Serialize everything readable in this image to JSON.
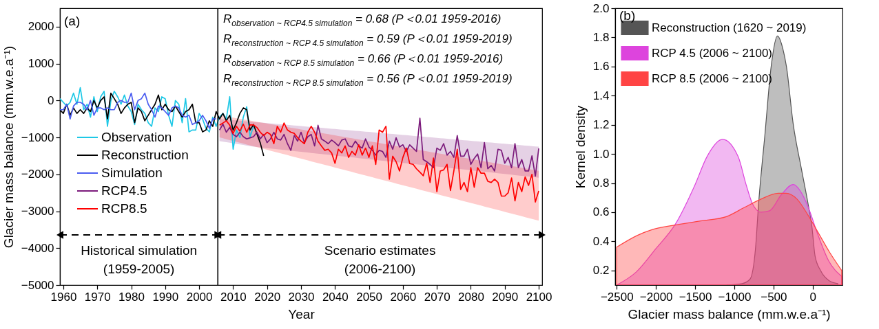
{
  "chart_data": [
    {
      "type": "line",
      "title": "(a)",
      "xlabel": "Year",
      "ylabel": "Glacier mass balance (mm.w.e.a⁻¹)",
      "xlim": [
        1959,
        2101
      ],
      "ylim": [
        -5000,
        2500
      ],
      "xticks": [
        1960,
        1970,
        1980,
        1990,
        2000,
        2010,
        2020,
        2030,
        2040,
        2050,
        2060,
        2070,
        2080,
        2090,
        2100
      ],
      "yticks": [
        -5000,
        -4000,
        -3000,
        -2000,
        -1000,
        0,
        1000,
        2000
      ],
      "legend": "left",
      "ref_lines": [
        {
          "axis": "x",
          "value": 2005.5
        }
      ],
      "annotations": [
        "R$_{observation ~ RCP4.5 simulation}$ = 0.68 (P＜0.01 1959-2016)",
        "R$_{reconstruction ~ RCP 4.5 simulation}$ = 0.59 (P＜0.01 1959-2019)",
        "R$_{observation ~ RCP 8.5 simulation}$ = 0.66 (P＜0.01 1959-2016)",
        "R$_{reconstruction ~ RCP 8.5 simulation}$ = 0.56 (P＜0.01 1959-2019)",
        "Historical simulation\n(1959-2005)",
        "Scenario estimates\n(2006-2100)"
      ],
      "series": [
        {
          "name": "Observation",
          "color": "#1ec8e6",
          "x": [
            1959,
            1960,
            1961,
            1962,
            1963,
            1964,
            1965,
            1966,
            1967,
            1968,
            1969,
            1970,
            1971,
            1972,
            1973,
            1974,
            1975,
            1976,
            1977,
            1978,
            1979,
            1980,
            1981,
            1982,
            1983,
            1984,
            1985,
            1986,
            1987,
            1988,
            1989,
            1990,
            1991,
            1992,
            1993,
            1994,
            1995,
            1996,
            1997,
            1998,
            1999,
            2000,
            2001,
            2002,
            2003,
            2004,
            2005,
            2006,
            2007,
            2008,
            2009,
            2010,
            2011,
            2012,
            2013,
            2014,
            2015,
            2016
          ],
          "values": [
            50,
            -50,
            -150,
            -50,
            200,
            -100,
            350,
            -250,
            -100,
            -450,
            100,
            -300,
            100,
            250,
            -700,
            0,
            250,
            100,
            -100,
            150,
            -150,
            -300,
            -650,
            -100,
            -250,
            -350,
            -600,
            -700,
            -200,
            -300,
            100,
            50,
            -400,
            -700,
            0,
            -100,
            -600,
            50,
            -850,
            -800,
            -800,
            -350,
            -500,
            -750,
            -850,
            -450,
            -700,
            -450,
            -350,
            -500,
            100,
            -1320,
            -800,
            -1000,
            -450,
            -170,
            -980,
            -700
          ]
        },
        {
          "name": "Reconstruction",
          "color": "#000000",
          "x": [
            1959,
            1960,
            1961,
            1962,
            1963,
            1964,
            1965,
            1966,
            1967,
            1968,
            1969,
            1970,
            1971,
            1972,
            1973,
            1974,
            1975,
            1976,
            1977,
            1978,
            1979,
            1980,
            1981,
            1982,
            1983,
            1984,
            1985,
            1986,
            1987,
            1988,
            1989,
            1990,
            1991,
            1992,
            1993,
            1994,
            1995,
            1996,
            1997,
            1998,
            1999,
            2000,
            2001,
            2002,
            2003,
            2004,
            2005,
            2006,
            2007,
            2008,
            2009,
            2010,
            2011,
            2012,
            2013,
            2014,
            2015,
            2016,
            2017,
            2018,
            2019
          ],
          "values": [
            -250,
            -350,
            -100,
            -400,
            -200,
            -350,
            -250,
            -350,
            -200,
            -300,
            0,
            -200,
            0,
            100,
            -500,
            200,
            50,
            -100,
            -350,
            -200,
            -100,
            -50,
            -600,
            -200,
            -300,
            -550,
            -400,
            -250,
            -100,
            150,
            -250,
            -100,
            -250,
            -300,
            -150,
            -300,
            -450,
            -300,
            -250,
            -100,
            -600,
            -600,
            -850,
            -800,
            -550,
            -700,
            -300,
            -500,
            -350,
            -550,
            -400,
            -800,
            -600,
            -350,
            -200,
            -250,
            -800,
            -650,
            -900,
            -1150,
            -1500
          ]
        },
        {
          "name": "Simulation",
          "color": "#4a5cf0",
          "x": [
            1959,
            1960,
            1961,
            1962,
            1963,
            1964,
            1965,
            1966,
            1967,
            1968,
            1969,
            1970,
            1971,
            1972,
            1973,
            1974,
            1975,
            1976,
            1977,
            1978,
            1979,
            1980,
            1981,
            1982,
            1983,
            1984,
            1985,
            1986,
            1987,
            1988,
            1989,
            1990,
            1991,
            1992,
            1993,
            1994,
            1995,
            1996,
            1997,
            1998,
            1999,
            2000,
            2001,
            2002,
            2003,
            2004,
            2005
          ],
          "values": [
            -250,
            -250,
            -100,
            -500,
            -150,
            -50,
            -50,
            -100,
            -250,
            0,
            -400,
            -200,
            -200,
            -250,
            -200,
            -250,
            -250,
            -50,
            0,
            -50,
            -50,
            200,
            -250,
            0,
            50,
            200,
            -100,
            -250,
            -450,
            -150,
            -200,
            -300,
            -400,
            -200,
            -150,
            -200,
            -400,
            -450,
            -400,
            -650,
            -600,
            -550,
            -400,
            -550,
            -750,
            -500,
            -500
          ]
        },
        {
          "name": "RCP4.5",
          "color": "#7b1a7b",
          "x": [
            2006,
            2007,
            2008,
            2009,
            2010,
            2011,
            2012,
            2013,
            2014,
            2015,
            2016,
            2017,
            2018,
            2019,
            2020,
            2021,
            2022,
            2023,
            2024,
            2025,
            2026,
            2027,
            2028,
            2029,
            2030,
            2031,
            2032,
            2033,
            2034,
            2035,
            2036,
            2037,
            2038,
            2039,
            2040,
            2041,
            2042,
            2043,
            2044,
            2045,
            2046,
            2047,
            2048,
            2049,
            2050,
            2051,
            2052,
            2053,
            2054,
            2055,
            2056,
            2057,
            2058,
            2059,
            2060,
            2061,
            2062,
            2063,
            2064,
            2065,
            2066,
            2067,
            2068,
            2069,
            2070,
            2071,
            2072,
            2073,
            2074,
            2075,
            2076,
            2077,
            2078,
            2079,
            2080,
            2081,
            2082,
            2083,
            2084,
            2085,
            2086,
            2087,
            2088,
            2089,
            2090,
            2091,
            2092,
            2093,
            2094,
            2095,
            2096,
            2097,
            2098,
            2099,
            2100
          ],
          "values": [
            -800,
            -640,
            -860,
            -730,
            -920,
            -980,
            -860,
            -980,
            -1040,
            -1010,
            -980,
            -860,
            -1040,
            -920,
            -1140,
            -1040,
            -860,
            -1040,
            -1070,
            -920,
            -1170,
            -1350,
            -950,
            -1100,
            -860,
            -1140,
            -980,
            -920,
            -1230,
            -670,
            -1040,
            -1100,
            -1170,
            -1070,
            -1140,
            -1230,
            -1070,
            -1040,
            -1230,
            -1260,
            -1100,
            -1230,
            -1290,
            -1040,
            -1260,
            -1350,
            -1480,
            -1350,
            -1380,
            -1540,
            -1100,
            -1320,
            -1010,
            -1260,
            -1200,
            -1380,
            -1200,
            -1290,
            -1380,
            -480,
            -1600,
            -1660,
            -1730,
            -1820,
            -1290,
            -1350,
            -1170,
            -1480,
            -1380,
            -1540,
            -950,
            -1510,
            -1510,
            -1320,
            -1730,
            -1570,
            -1450,
            -1820,
            -1140,
            -1850,
            -1760,
            -1910,
            -1320,
            -1350,
            -1700,
            -1540,
            -1820,
            -1170,
            -1820,
            -1600,
            -1910,
            -1910,
            -1500,
            -2050,
            -1300
          ],
          "lower": [
            -1100,
            -1115,
            -1130,
            -1145,
            -1160,
            -1175,
            -1190,
            -1205,
            -1220,
            -1235,
            -1250,
            -1260,
            -1270,
            -1280,
            -1290,
            -1300,
            -1310,
            -1320,
            -1330,
            -1340,
            -1350,
            -1360,
            -1370,
            -1380,
            -1390,
            -1400,
            -1410,
            -1420,
            -1430,
            -1440,
            -1450,
            -1460,
            -1470,
            -1480,
            -1490,
            -1500,
            -1510,
            -1520,
            -1530,
            -1540,
            -1550,
            -1560,
            -1570,
            -1580,
            -1590,
            -1600,
            -1610,
            -1620,
            -1630,
            -1640,
            -1650,
            -1660,
            -1670,
            -1680,
            -1690,
            -1700,
            -1710,
            -1720,
            -1730,
            -1740,
            -1750,
            -1760,
            -1770,
            -1780,
            -1790,
            -1800,
            -1810,
            -1820,
            -1830,
            -1840,
            -1850,
            -1860,
            -1870,
            -1880,
            -1890,
            -1900,
            -1910,
            -1920,
            -1930,
            -1940,
            -1950,
            -1960,
            -1970,
            -1980,
            -1990,
            -2000,
            -2010,
            -2020,
            -2030,
            -2040,
            -2050,
            -2060,
            -2070,
            -2080,
            -2090
          ],
          "upper": [
            -500,
            -508,
            -516,
            -524,
            -532,
            -540,
            -548,
            -556,
            -564,
            -572,
            -580,
            -588,
            -596,
            -604,
            -612,
            -620,
            -628,
            -636,
            -644,
            -652,
            -660,
            -668,
            -676,
            -684,
            -692,
            -700,
            -708,
            -716,
            -724,
            -732,
            -740,
            -748,
            -756,
            -764,
            -772,
            -780,
            -788,
            -796,
            -804,
            -812,
            -820,
            -828,
            -836,
            -844,
            -852,
            -860,
            -868,
            -876,
            -884,
            -892,
            -900,
            -908,
            -916,
            -924,
            -932,
            -940,
            -948,
            -956,
            -964,
            -972,
            -980,
            -988,
            -996,
            -1004,
            -1012,
            -1020,
            -1028,
            -1036,
            -1044,
            -1052,
            -1060,
            -1068,
            -1076,
            -1084,
            -1092,
            -1100,
            -1108,
            -1116,
            -1124,
            -1132,
            -1140,
            -1148,
            -1156,
            -1164,
            -1172,
            -1180,
            -1188,
            -1196,
            -1204,
            -1212,
            -1220,
            -1228,
            -1236,
            -1244,
            -1252
          ]
        },
        {
          "name": "RCP8.5",
          "color": "#ff0000",
          "x": [
            2006,
            2007,
            2008,
            2009,
            2010,
            2011,
            2012,
            2013,
            2014,
            2015,
            2016,
            2017,
            2018,
            2019,
            2020,
            2021,
            2022,
            2023,
            2024,
            2025,
            2026,
            2027,
            2028,
            2029,
            2030,
            2031,
            2032,
            2033,
            2034,
            2035,
            2036,
            2037,
            2038,
            2039,
            2040,
            2041,
            2042,
            2043,
            2044,
            2045,
            2046,
            2047,
            2048,
            2049,
            2050,
            2051,
            2052,
            2053,
            2054,
            2055,
            2056,
            2057,
            2058,
            2059,
            2060,
            2061,
            2062,
            2063,
            2064,
            2065,
            2066,
            2067,
            2068,
            2069,
            2070,
            2071,
            2072,
            2073,
            2074,
            2075,
            2076,
            2077,
            2078,
            2079,
            2080,
            2081,
            2082,
            2083,
            2084,
            2085,
            2086,
            2087,
            2088,
            2089,
            2090,
            2091,
            2092,
            2093,
            2094,
            2095,
            2096,
            2097,
            2098,
            2099,
            2100
          ],
          "values": [
            -670,
            -610,
            -550,
            -670,
            -890,
            -700,
            -830,
            -640,
            -860,
            -660,
            -660,
            -730,
            -860,
            -950,
            -860,
            -920,
            -1170,
            -700,
            -860,
            -610,
            -800,
            -860,
            -890,
            -1010,
            -1100,
            -1170,
            -860,
            -700,
            -860,
            -1100,
            -1230,
            -1350,
            -1320,
            -1420,
            -1700,
            -1320,
            -1420,
            -1230,
            -1540,
            -1380,
            -1480,
            -1200,
            -1480,
            -1290,
            -1540,
            -1230,
            -1730,
            -800,
            -860,
            -700,
            -2130,
            -1510,
            -1660,
            -1910,
            -1540,
            -1290,
            -1710,
            -1730,
            -1850,
            -1940,
            -2040,
            -1700,
            -2220,
            -1560,
            -2470,
            -1910,
            -1880,
            -1730,
            -2440,
            -1910,
            -1320,
            -2410,
            -2220,
            -2470,
            -1820,
            -2350,
            -1820,
            -1970,
            -1970,
            -2190,
            -2220,
            -2130,
            -2220,
            -2590,
            -2590,
            -2500,
            -2100,
            -2720,
            -2220,
            -2470,
            -2070,
            -2300,
            -2000,
            -2750,
            -2450
          ],
          "lower": [
            -1000,
            -1024,
            -1048,
            -1072,
            -1096,
            -1120,
            -1144,
            -1168,
            -1192,
            -1216,
            -1240,
            -1264,
            -1288,
            -1312,
            -1336,
            -1360,
            -1384,
            -1408,
            -1432,
            -1456,
            -1480,
            -1504,
            -1528,
            -1552,
            -1576,
            -1600,
            -1624,
            -1648,
            -1672,
            -1696,
            -1720,
            -1744,
            -1768,
            -1792,
            -1816,
            -1840,
            -1864,
            -1888,
            -1912,
            -1936,
            -1960,
            -1984,
            -2008,
            -2032,
            -2056,
            -2080,
            -2104,
            -2128,
            -2152,
            -2176,
            -2200,
            -2224,
            -2248,
            -2272,
            -2296,
            -2320,
            -2344,
            -2368,
            -2392,
            -2416,
            -2440,
            -2464,
            -2488,
            -2512,
            -2536,
            -2560,
            -2584,
            -2608,
            -2632,
            -2656,
            -2680,
            -2704,
            -2728,
            -2752,
            -2776,
            -2800,
            -2824,
            -2848,
            -2872,
            -2896,
            -2920,
            -2944,
            -2968,
            -2992,
            -3016,
            -3040,
            -3064,
            -3088,
            -3112,
            -3136,
            -3160,
            -3184,
            -3208,
            -3232,
            -3256
          ],
          "upper": [
            -400,
            -416,
            -432,
            -448,
            -464,
            -480,
            -496,
            -512,
            -528,
            -544,
            -560,
            -576,
            -592,
            -608,
            -624,
            -640,
            -656,
            -672,
            -688,
            -704,
            -720,
            -736,
            -752,
            -768,
            -784,
            -800,
            -816,
            -832,
            -848,
            -864,
            -880,
            -896,
            -912,
            -928,
            -944,
            -960,
            -976,
            -992,
            -1008,
            -1024,
            -1040,
            -1056,
            -1072,
            -1088,
            -1104,
            -1120,
            -1136,
            -1152,
            -1168,
            -1184,
            -1200,
            -1216,
            -1232,
            -1248,
            -1264,
            -1280,
            -1296,
            -1312,
            -1328,
            -1344,
            -1360,
            -1376,
            -1392,
            -1408,
            -1424,
            -1440,
            -1456,
            -1472,
            -1488,
            -1504,
            -1520,
            -1536,
            -1552,
            -1568,
            -1584,
            -1600,
            -1616,
            -1632,
            -1648,
            -1664,
            -1680,
            -1696,
            -1712,
            -1728,
            -1744,
            -1760,
            -1776,
            -1792,
            -1808,
            -1824,
            -1840,
            -1856,
            -1872,
            -1888,
            -1904
          ]
        }
      ]
    },
    {
      "type": "area",
      "title": "(b)",
      "xlabel": "Glacier mass balance (mm.w.e.a⁻¹)",
      "ylabel": "Kernel density",
      "xlim": [
        -2520,
        380
      ],
      "ylim": [
        0.1,
        2
      ],
      "xticks": [
        -2500,
        -2000,
        -1500,
        -1000,
        -500,
        0
      ],
      "yticks": [
        0.2,
        0.4,
        0.6,
        0.8,
        {
          "value": 1,
          "label": "1.0"
        },
        1.2,
        1.4,
        1.6,
        1.8,
        {
          "value": 2,
          "label": "2.0"
        }
      ],
      "legend": "top left",
      "series": [
        {
          "name": "Reconstruction (1620 ~ 2019)",
          "color": "#555555",
          "x": [
            -1100,
            -900,
            -800,
            -730,
            -690,
            -610,
            -530,
            -450,
            -380,
            -335,
            -250,
            -145,
            -60,
            -10,
            30,
            100,
            210,
            320
          ],
          "values": [
            0.1,
            0.11,
            0.14,
            0.35,
            0.66,
            1.13,
            1.6,
            1.81,
            1.72,
            1.6,
            1.21,
            0.9,
            0.66,
            0.5,
            0.3,
            0.2,
            0.13,
            0.11
          ]
        },
        {
          "name": "RCP 4.5 (2006 ~ 2100)",
          "color": "#dd44dd",
          "x": [
            -2500,
            -2250,
            -2000,
            -1750,
            -1500,
            -1350,
            -1150,
            -950,
            -850,
            -770,
            -660,
            -550,
            -400,
            -250,
            -120,
            -40,
            50,
            200,
            370
          ],
          "values": [
            0.1,
            0.19,
            0.35,
            0.52,
            0.79,
            0.98,
            1.1,
            0.98,
            0.79,
            0.66,
            0.6,
            0.61,
            0.72,
            0.79,
            0.71,
            0.61,
            0.47,
            0.27,
            0.16
          ]
        },
        {
          "name": "RCP 8.5 (2006 ~ 2100)",
          "color": "#ff4444",
          "x": [
            -2500,
            -2240,
            -2050,
            -1780,
            -1430,
            -1100,
            -880,
            -660,
            -440,
            -340,
            -200,
            -60,
            70,
            210,
            370
          ],
          "values": [
            0.36,
            0.44,
            0.48,
            0.51,
            0.54,
            0.57,
            0.63,
            0.69,
            0.73,
            0.73,
            0.69,
            0.58,
            0.46,
            0.33,
            0.2
          ]
        }
      ]
    }
  ]
}
